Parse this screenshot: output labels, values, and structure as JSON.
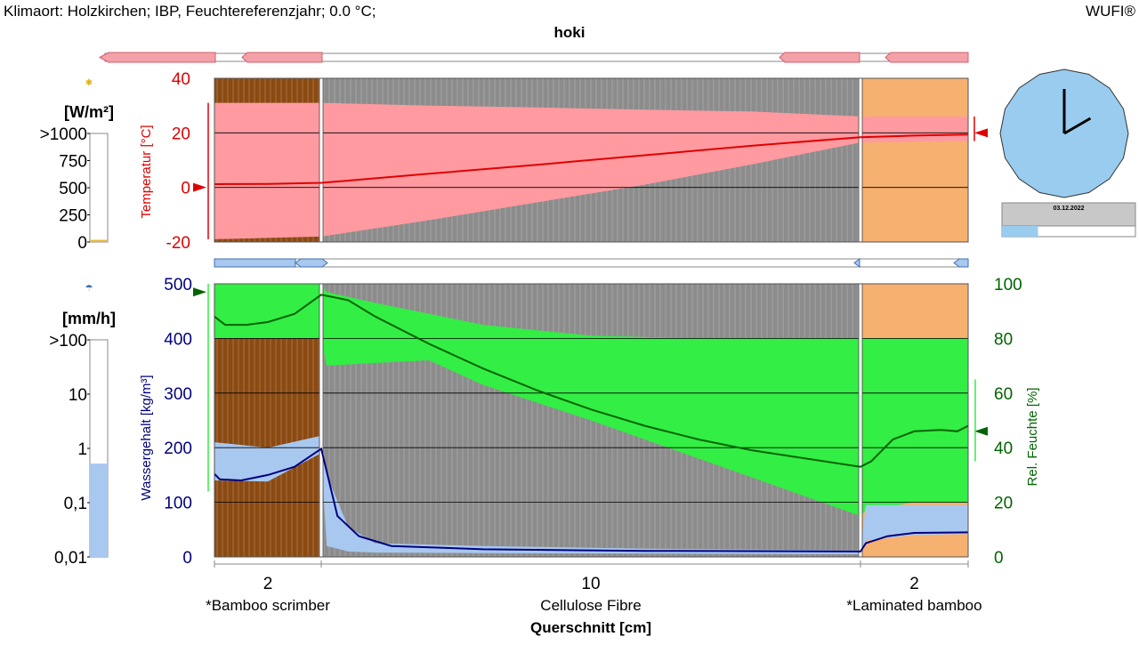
{
  "header": {
    "climate": "Klimaort: Holzkirchen; IBP, Feuchtereferenzjahr; 0.0 °C;",
    "brand": "WUFI®",
    "project": "hoki"
  },
  "clock": {
    "date": "03.12.2022",
    "hour": 2,
    "minute": 0,
    "progress": 0.27
  },
  "colors": {
    "temp": "#e00000",
    "temp_band": "#ff9aa0",
    "water": "#000080",
    "water_band": "#a8c8f0",
    "rh": "#006400",
    "rh_band": "#33ee44",
    "bamboo": "#8b4a12",
    "cellulose": "#8c8c8c",
    "laminated": "#f6b070",
    "clock_face": "#99ccee"
  },
  "left_scales": {
    "radiation": {
      "unit": "[W/m²]",
      "ticks": [
        ">1000",
        "750",
        "500",
        "250",
        "0"
      ],
      "level": 0.02,
      "fill": "#e8b840"
    },
    "rain": {
      "unit": "[mm/h]",
      "ticks": [
        ">100",
        "10",
        "1",
        "0,1",
        "0,01"
      ],
      "level": 0.43,
      "fill": "#a8c8f0"
    }
  },
  "chart_data": [
    {
      "type": "area",
      "name": "temperature",
      "ylabel": "Temperatur [°C]",
      "ylim": [
        -20,
        40
      ],
      "yticks": [
        "40",
        "20",
        "0",
        "-20"
      ],
      "layers": [
        {
          "label": "*Bamboo scrimber",
          "thickness": "2",
          "x": [
            0,
            2
          ]
        },
        {
          "label": "Cellulose Fibre",
          "thickness": "10",
          "x": [
            2,
            12
          ]
        },
        {
          "label": "*Laminated bamboo",
          "thickness": "2",
          "x": [
            12,
            14
          ]
        }
      ],
      "xlabel": "Querschnitt [cm]",
      "series": [
        {
          "id": "temperature",
          "x": [
            0,
            1,
            2,
            4,
            6,
            8,
            10,
            12,
            13,
            14
          ],
          "y": [
            1.2,
            1.3,
            1.7,
            5.0,
            8.3,
            11.8,
            15.3,
            18.4,
            19.0,
            19.4
          ]
        }
      ],
      "band": {
        "x": [
          0,
          2,
          4,
          6,
          8,
          10,
          12,
          14
        ],
        "lower": [
          -19,
          -18,
          -12,
          -5.5,
          1,
          8.5,
          16.5,
          17
        ],
        "upper": [
          31,
          31,
          30,
          29.3,
          28.5,
          27.8,
          26,
          26
        ]
      },
      "outdoor_marker": 0,
      "indoor_marker": 20
    },
    {
      "type": "area",
      "name": "moisture",
      "ylabel": "Wassergehalt [kg/m³]",
      "y2label": "Rel. Feuchte [%]",
      "ylim": [
        0,
        500
      ],
      "y2lim": [
        0,
        100
      ],
      "yticks": [
        "500",
        "400",
        "300",
        "200",
        "100",
        "0"
      ],
      "y2ticks": [
        "100",
        "80",
        "60",
        "40",
        "20",
        "0"
      ],
      "series": [
        {
          "id": "water_content",
          "x": [
            0,
            0.1,
            0.5,
            1,
            1.5,
            2,
            2.3,
            2.7,
            3.3,
            5,
            8,
            12,
            12.1,
            12.5,
            13,
            14
          ],
          "y": [
            152,
            142,
            140,
            150,
            165,
            198,
            75,
            38,
            20,
            14,
            11,
            10,
            25,
            38,
            44,
            45
          ]
        },
        {
          "id": "relative_humidity",
          "x": [
            0,
            0.2,
            0.6,
            1,
            1.5,
            2,
            2.5,
            3,
            4,
            5,
            6,
            7,
            8,
            9,
            10,
            11,
            12,
            12.2,
            12.6,
            13,
            13.5,
            13.8,
            14
          ],
          "y": [
            88,
            85,
            85,
            86,
            89,
            96,
            94,
            88,
            78,
            69,
            61,
            54,
            48,
            43,
            39,
            36,
            33,
            35,
            43,
            46,
            46.5,
            46,
            48
          ]
        }
      ],
      "water_band": {
        "x": [
          0,
          1,
          2,
          2.1,
          2.5,
          3,
          5,
          8,
          12,
          12.1,
          13,
          14
        ],
        "lower": [
          140,
          138,
          190,
          20,
          10,
          8,
          7,
          6,
          5,
          30,
          40,
          42
        ],
        "upper": [
          210,
          200,
          222,
          150,
          55,
          25,
          20,
          15,
          12,
          95,
          95,
          95
        ]
      },
      "rh_band": {
        "x": [
          0,
          0.5,
          1.5,
          2,
          2.1,
          3,
          4,
          5,
          7,
          9,
          12,
          12.1,
          13,
          14
        ],
        "lower": [
          80,
          80,
          80,
          80,
          70,
          71,
          72,
          63,
          50,
          36,
          15,
          17,
          20,
          20
        ],
        "upper": [
          100,
          100,
          100,
          100,
          97,
          93,
          89,
          85,
          81,
          80,
          80,
          80,
          80,
          80
        ]
      },
      "rh_ticks_shown": [
        0,
        100
      ],
      "outdoor_marker": 97,
      "indoor_marker": 46
    }
  ]
}
